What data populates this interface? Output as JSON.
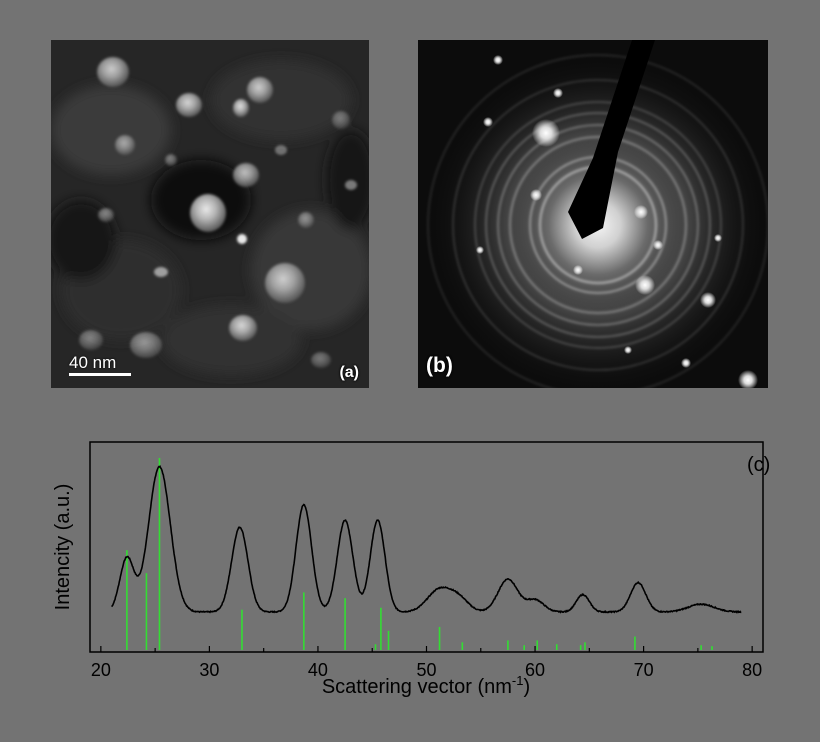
{
  "panel_a": {
    "tag": "(a)",
    "scale_bar": "40 nm"
  },
  "panel_b": {
    "tag": "(b)"
  },
  "colors": {
    "background": "#737373",
    "curve": "#000000",
    "reference_lines": "#33dd33",
    "micrograph_bright": "#e8e8e8"
  },
  "chart_data": {
    "type": "line",
    "panel_label": "(c)",
    "xlabel": "Scattering vector (nm",
    "xlabel_sup": "-1",
    "xlabel_tail": ")",
    "ylabel": "Intencity (a.u.)",
    "xlim": [
      19,
      81
    ],
    "ylim": [
      0,
      1.0
    ],
    "xticks": [
      20,
      30,
      40,
      50,
      60,
      70,
      80
    ],
    "yticks_visible": false,
    "grid": false,
    "legend": "none",
    "baseline": 0.11,
    "peaks": [
      {
        "x": 22.4,
        "height": 0.31,
        "width": 0.65
      },
      {
        "x": 25.4,
        "height": 0.84,
        "width": 1.0
      },
      {
        "x": 32.8,
        "height": 0.49,
        "width": 0.75
      },
      {
        "x": 38.7,
        "height": 0.62,
        "width": 0.72
      },
      {
        "x": 42.5,
        "height": 0.53,
        "width": 0.72
      },
      {
        "x": 45.5,
        "height": 0.53,
        "width": 0.68
      },
      {
        "x": 51.2,
        "height": 0.13,
        "width": 1.1
      },
      {
        "x": 53.0,
        "height": 0.07,
        "width": 0.9
      },
      {
        "x": 57.5,
        "height": 0.19,
        "width": 0.9
      },
      {
        "x": 60.0,
        "height": 0.07,
        "width": 0.8
      },
      {
        "x": 64.4,
        "height": 0.1,
        "width": 0.6
      },
      {
        "x": 69.5,
        "height": 0.17,
        "width": 0.7
      },
      {
        "x": 75.3,
        "height": 0.045,
        "width": 1.2
      }
    ],
    "x_end": 79,
    "reference_lines": [
      {
        "x": 22.4,
        "height": 0.52
      },
      {
        "x": 24.2,
        "height": 0.4
      },
      {
        "x": 25.4,
        "height": 1.0
      },
      {
        "x": 33.0,
        "height": 0.21
      },
      {
        "x": 38.7,
        "height": 0.3
      },
      {
        "x": 42.5,
        "height": 0.27
      },
      {
        "x": 45.3,
        "height": 0.03
      },
      {
        "x": 45.8,
        "height": 0.22
      },
      {
        "x": 46.5,
        "height": 0.1
      },
      {
        "x": 51.2,
        "height": 0.12
      },
      {
        "x": 53.3,
        "height": 0.04
      },
      {
        "x": 57.5,
        "height": 0.05
      },
      {
        "x": 59.0,
        "height": 0.025
      },
      {
        "x": 60.2,
        "height": 0.05
      },
      {
        "x": 62.0,
        "height": 0.03
      },
      {
        "x": 64.2,
        "height": 0.025
      },
      {
        "x": 64.6,
        "height": 0.04
      },
      {
        "x": 69.2,
        "height": 0.07
      },
      {
        "x": 75.3,
        "height": 0.025
      },
      {
        "x": 76.3,
        "height": 0.02
      }
    ]
  }
}
